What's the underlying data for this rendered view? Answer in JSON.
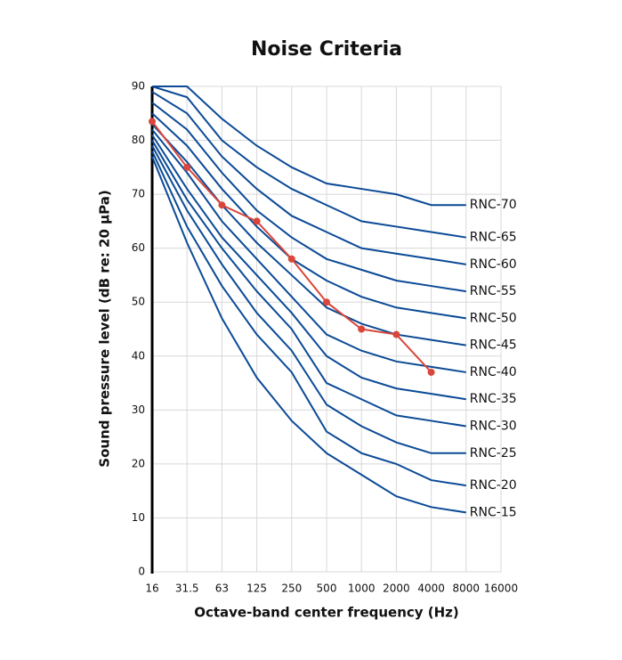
{
  "chart_data": {
    "type": "line",
    "title": "Noise Criteria",
    "x_label": "Octave-band center frequency (Hz)",
    "y_label": "Sound pressure level (dB re: 20 µPa)",
    "categories": [
      "16",
      "31.5",
      "63",
      "125",
      "250",
      "500",
      "1000",
      "2000",
      "4000",
      "8000",
      "16000"
    ],
    "ylim": [
      0,
      90
    ],
    "yticks": [
      0,
      10,
      20,
      30,
      40,
      50,
      60,
      70,
      80,
      90
    ],
    "grid": true,
    "series": [
      {
        "name": "RNC-70",
        "color": "#0b4a96",
        "values": [
          90,
          90,
          84,
          79,
          75,
          72,
          71,
          70,
          68,
          68,
          null
        ]
      },
      {
        "name": "RNC-65",
        "color": "#0b4a96",
        "values": [
          90,
          88,
          80,
          75,
          71,
          68,
          65,
          64,
          63,
          62,
          null
        ]
      },
      {
        "name": "RNC-60",
        "color": "#0b4a96",
        "values": [
          89,
          85,
          77,
          71,
          66,
          63,
          60,
          59,
          58,
          57,
          null
        ]
      },
      {
        "name": "RNC-55",
        "color": "#0b4a96",
        "values": [
          87,
          82,
          74,
          67,
          62,
          58,
          56,
          54,
          53,
          52,
          null
        ]
      },
      {
        "name": "RNC-50",
        "color": "#0b4a96",
        "values": [
          85,
          79,
          71,
          64,
          58,
          54,
          51,
          49,
          48,
          47,
          null
        ]
      },
      {
        "name": "RNC-45",
        "color": "#0b4a96",
        "values": [
          83,
          76,
          68,
          61,
          55,
          49,
          46,
          44,
          43,
          42,
          null
        ]
      },
      {
        "name": "RNC-40",
        "color": "#0b4a96",
        "values": [
          82,
          74,
          65,
          58,
          51,
          44,
          41,
          39,
          38,
          37,
          null
        ]
      },
      {
        "name": "RNC-35",
        "color": "#0b4a96",
        "values": [
          81,
          71,
          62,
          55,
          48,
          40,
          36,
          34,
          33,
          32,
          null
        ]
      },
      {
        "name": "RNC-30",
        "color": "#0b4a96",
        "values": [
          80,
          69,
          60,
          52,
          45,
          35,
          32,
          29,
          28,
          27,
          null
        ]
      },
      {
        "name": "RNC-25",
        "color": "#0b4a96",
        "values": [
          79,
          67,
          57,
          48,
          41,
          31,
          27,
          24,
          22,
          22,
          null
        ]
      },
      {
        "name": "RNC-20",
        "color": "#0b4a96",
        "values": [
          78,
          64,
          53,
          44,
          37,
          26,
          22,
          20,
          17,
          16,
          null
        ]
      },
      {
        "name": "RNC-15",
        "color": "#0b4a96",
        "values": [
          77,
          61,
          47,
          36,
          28,
          22,
          18,
          14,
          12,
          11,
          null
        ]
      },
      {
        "color": "#d9463a",
        "markers": true,
        "values": [
          83.5,
          75,
          68,
          65,
          58,
          50,
          45,
          44,
          37,
          null,
          null
        ]
      }
    ]
  }
}
